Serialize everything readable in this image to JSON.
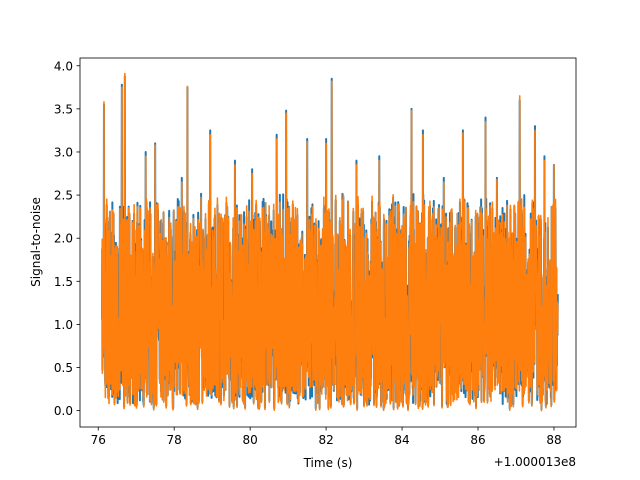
{
  "chart_data": {
    "type": "line",
    "title": "",
    "xlabel": "Time (s)",
    "ylabel": "Signal-to-noise",
    "x_offset_label": "+1.000013e8",
    "xlim": [
      75.52,
      88.58
    ],
    "ylim": [
      -0.19,
      4.09
    ],
    "x_ticks": [
      76,
      78,
      80,
      82,
      84,
      86,
      88
    ],
    "x_tick_labels": [
      "76",
      "78",
      "80",
      "82",
      "84",
      "86",
      "88"
    ],
    "y_ticks": [
      0.0,
      0.5,
      1.0,
      1.5,
      2.0,
      2.5,
      3.0,
      3.5,
      4.0
    ],
    "y_tick_labels": [
      "0.0",
      "0.5",
      "1.0",
      "1.5",
      "2.0",
      "2.5",
      "3.0",
      "3.5",
      "4.0"
    ],
    "grid": false,
    "legend": "none",
    "x_range": [
      76.1,
      88.1
    ],
    "series": [
      {
        "color": "#1f77b4",
        "values_range": [
          0.02,
          3.88
        ],
        "peaks": [
          [
            76.15,
            3.55
          ],
          [
            76.62,
            3.78
          ],
          [
            76.7,
            3.9
          ],
          [
            77.25,
            3.0
          ],
          [
            77.5,
            3.1
          ],
          [
            78.2,
            2.7
          ],
          [
            78.35,
            3.75
          ],
          [
            78.95,
            3.25
          ],
          [
            79.6,
            2.9
          ],
          [
            80.05,
            2.8
          ],
          [
            80.7,
            3.2
          ],
          [
            80.95,
            3.48
          ],
          [
            81.5,
            3.15
          ],
          [
            82.0,
            3.15
          ],
          [
            82.15,
            3.85
          ],
          [
            82.8,
            2.9
          ],
          [
            83.4,
            2.95
          ],
          [
            84.25,
            3.5
          ],
          [
            84.55,
            3.25
          ],
          [
            85.1,
            2.7
          ],
          [
            85.6,
            3.25
          ],
          [
            86.2,
            3.4
          ],
          [
            86.5,
            2.7
          ],
          [
            87.1,
            3.6
          ],
          [
            87.5,
            3.3
          ],
          [
            87.75,
            2.95
          ],
          [
            88.0,
            2.85
          ]
        ]
      },
      {
        "color": "#ff7f0e",
        "values_range": [
          0.0,
          3.91
        ],
        "peaks": [
          [
            76.15,
            3.58
          ],
          [
            76.62,
            3.75
          ],
          [
            76.7,
            3.91
          ],
          [
            77.25,
            2.95
          ],
          [
            77.5,
            3.08
          ],
          [
            78.2,
            2.65
          ],
          [
            78.35,
            3.76
          ],
          [
            78.95,
            3.2
          ],
          [
            79.6,
            2.85
          ],
          [
            80.05,
            2.75
          ],
          [
            80.7,
            3.15
          ],
          [
            80.95,
            3.45
          ],
          [
            81.5,
            3.12
          ],
          [
            82.0,
            3.1
          ],
          [
            82.15,
            3.82
          ],
          [
            82.8,
            2.85
          ],
          [
            83.4,
            2.9
          ],
          [
            84.25,
            3.48
          ],
          [
            84.55,
            3.2
          ],
          [
            85.1,
            2.65
          ],
          [
            85.6,
            3.22
          ],
          [
            86.2,
            3.35
          ],
          [
            86.5,
            2.68
          ],
          [
            87.1,
            3.65
          ],
          [
            87.5,
            3.25
          ],
          [
            87.75,
            2.9
          ],
          [
            88.0,
            2.85
          ]
        ]
      }
    ]
  }
}
